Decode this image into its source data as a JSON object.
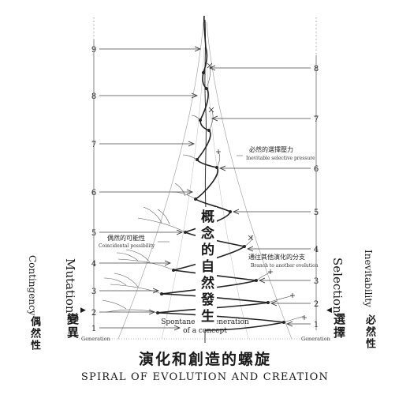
{
  "title_zh": "演化和創造的螺旋",
  "title_en": "SPIRAL OF EVOLUTION AND CREATION",
  "center_label_zh": "概念的自然發生",
  "bottom_label_en_1": "Spontaneous generation",
  "bottom_label_en_2": "of a concept",
  "left_axis": {
    "title_en": "Mutation",
    "title_zh": "變異",
    "subtitle_en": "Contingency",
    "subtitle_zh": "偶然性",
    "base_label": "Generation",
    "ticks": [
      "1",
      "2",
      "3",
      "4",
      "5",
      "6",
      "7",
      "8",
      "9"
    ]
  },
  "right_axis": {
    "title_en": "Selection",
    "title_zh": "選擇",
    "subtitle_en": "Inevitability",
    "subtitle_zh": "必然性",
    "base_label": "Generation",
    "ticks": [
      "1",
      "2",
      "3",
      "4",
      "5",
      "6",
      "7",
      "8"
    ]
  },
  "annotations": {
    "coincidental_zh": "偶然的可能性",
    "coincidental_en": "Coincidental possibility",
    "branch_zh": "通往其他演化的分支",
    "branch_en": "Branch to another evolution",
    "selective_zh": "必然的選擇壓力",
    "selective_en": "Inevitable selective pressure"
  }
}
